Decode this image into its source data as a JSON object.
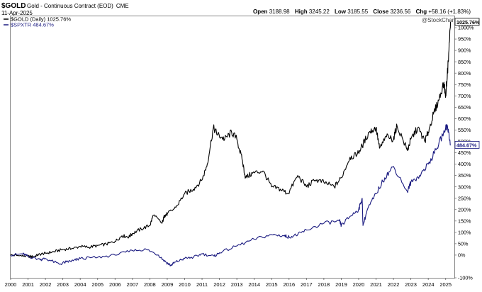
{
  "header": {
    "symbol": "$GOLD",
    "description": "Gold - Continuous Contract (EOD)",
    "exchange": "CME",
    "date": "11-Apr-2025",
    "watermark": "@StockCharts.com",
    "quote": [
      {
        "label": "Open",
        "value": "3188.98"
      },
      {
        "label": "High",
        "value": "3245.22"
      },
      {
        "label": "Low",
        "value": "3185.55"
      },
      {
        "label": "Close",
        "value": "3236.56"
      },
      {
        "label": "Chg",
        "value": "+58.16 (+1.83%)"
      }
    ]
  },
  "chart_data": {
    "type": "line",
    "title": "$GOLD Gold - Continuous Contract (EOD) CME",
    "xlabel": "",
    "ylabel": "",
    "legend_position": "top-left",
    "grid": false,
    "xlim": [
      2000.0,
      2025.5
    ],
    "ylim": [
      -100,
      1050
    ],
    "x_ticks": [
      "2000",
      "2001",
      "2002",
      "2003",
      "2004",
      "2005",
      "2006",
      "2007",
      "2008",
      "2009",
      "2010",
      "2011",
      "2012",
      "2013",
      "2014",
      "2015",
      "2016",
      "2017",
      "2018",
      "2019",
      "2020",
      "2021",
      "2022",
      "2023",
      "2024",
      "2025"
    ],
    "y_ticks": [
      -100,
      0,
      50,
      100,
      150,
      200,
      250,
      300,
      350,
      400,
      450,
      500,
      550,
      600,
      650,
      700,
      750,
      800,
      850,
      900,
      950,
      1000
    ],
    "y_tick_labels": [
      "-100%",
      "0%",
      "50%",
      "100%",
      "150%",
      "200%",
      "250%",
      "300%",
      "350%",
      "400%",
      "450%",
      "500%",
      "550%",
      "600%",
      "650%",
      "700%",
      "750%",
      "800%",
      "850%",
      "900%",
      "950%",
      "1000%"
    ],
    "series": [
      {
        "name": "$GOLD (Daily) 1025.76%",
        "color": "#000000",
        "end_label": "1025.76%",
        "x": [
          2000.0,
          2000.5,
          2001.0,
          2001.3,
          2001.6,
          2002.0,
          2002.5,
          2003.0,
          2003.5,
          2004.0,
          2004.5,
          2005.0,
          2005.5,
          2006.0,
          2006.4,
          2006.8,
          2007.0,
          2007.5,
          2008.0,
          2008.2,
          2008.7,
          2008.85,
          2009.0,
          2009.5,
          2010.0,
          2010.5,
          2011.0,
          2011.3,
          2011.65,
          2011.9,
          2012.3,
          2012.7,
          2013.0,
          2013.3,
          2013.5,
          2013.9,
          2014.5,
          2015.0,
          2015.5,
          2015.95,
          2016.5,
          2017.0,
          2017.5,
          2018.0,
          2018.6,
          2019.0,
          2019.5,
          2019.9,
          2020.2,
          2020.6,
          2021.0,
          2021.2,
          2021.6,
          2022.0,
          2022.2,
          2022.8,
          2023.0,
          2023.4,
          2023.8,
          2024.0,
          2024.3,
          2024.6,
          2024.9,
          2025.0,
          2025.15,
          2025.28
        ],
        "y": [
          0,
          -3,
          -5,
          -8,
          2,
          8,
          15,
          25,
          28,
          38,
          35,
          42,
          48,
          60,
          85,
          80,
          95,
          115,
          130,
          175,
          140,
          175,
          180,
          210,
          270,
          290,
          330,
          400,
          560,
          530,
          510,
          540,
          510,
          420,
          340,
          360,
          370,
          300,
          290,
          270,
          350,
          300,
          330,
          320,
          300,
          340,
          430,
          440,
          480,
          540,
          560,
          470,
          520,
          510,
          570,
          460,
          510,
          560,
          500,
          540,
          620,
          680,
          760,
          700,
          850,
          1025.76
        ]
      },
      {
        "name": "$SPXTR 484.67%",
        "color": "#1a1a80",
        "end_label": "484.67%",
        "x": [
          2000.0,
          2000.7,
          2001.0,
          2001.7,
          2002.0,
          2002.8,
          2003.2,
          2003.6,
          2004.0,
          2005.0,
          2006.0,
          2007.0,
          2007.8,
          2008.5,
          2008.9,
          2009.2,
          2009.5,
          2010.0,
          2010.5,
          2011.0,
          2011.7,
          2012.0,
          2013.0,
          2014.0,
          2015.0,
          2015.7,
          2016.0,
          2016.5,
          2017.0,
          2018.0,
          2018.9,
          2019.0,
          2019.5,
          2020.0,
          2020.2,
          2020.25,
          2020.5,
          2021.0,
          2021.5,
          2022.0,
          2022.8,
          2023.0,
          2023.5,
          2024.0,
          2024.5,
          2025.0,
          2025.1,
          2025.28
        ],
        "y": [
          0,
          5,
          -5,
          -20,
          -15,
          -40,
          -30,
          -25,
          -15,
          -10,
          0,
          20,
          25,
          0,
          -30,
          -45,
          -30,
          -15,
          -10,
          5,
          -5,
          10,
          40,
          70,
          90,
          85,
          80,
          90,
          110,
          140,
          150,
          130,
          170,
          200,
          250,
          130,
          200,
          270,
          340,
          390,
          280,
          320,
          350,
          400,
          470,
          560,
          570,
          484.67
        ]
      }
    ]
  }
}
